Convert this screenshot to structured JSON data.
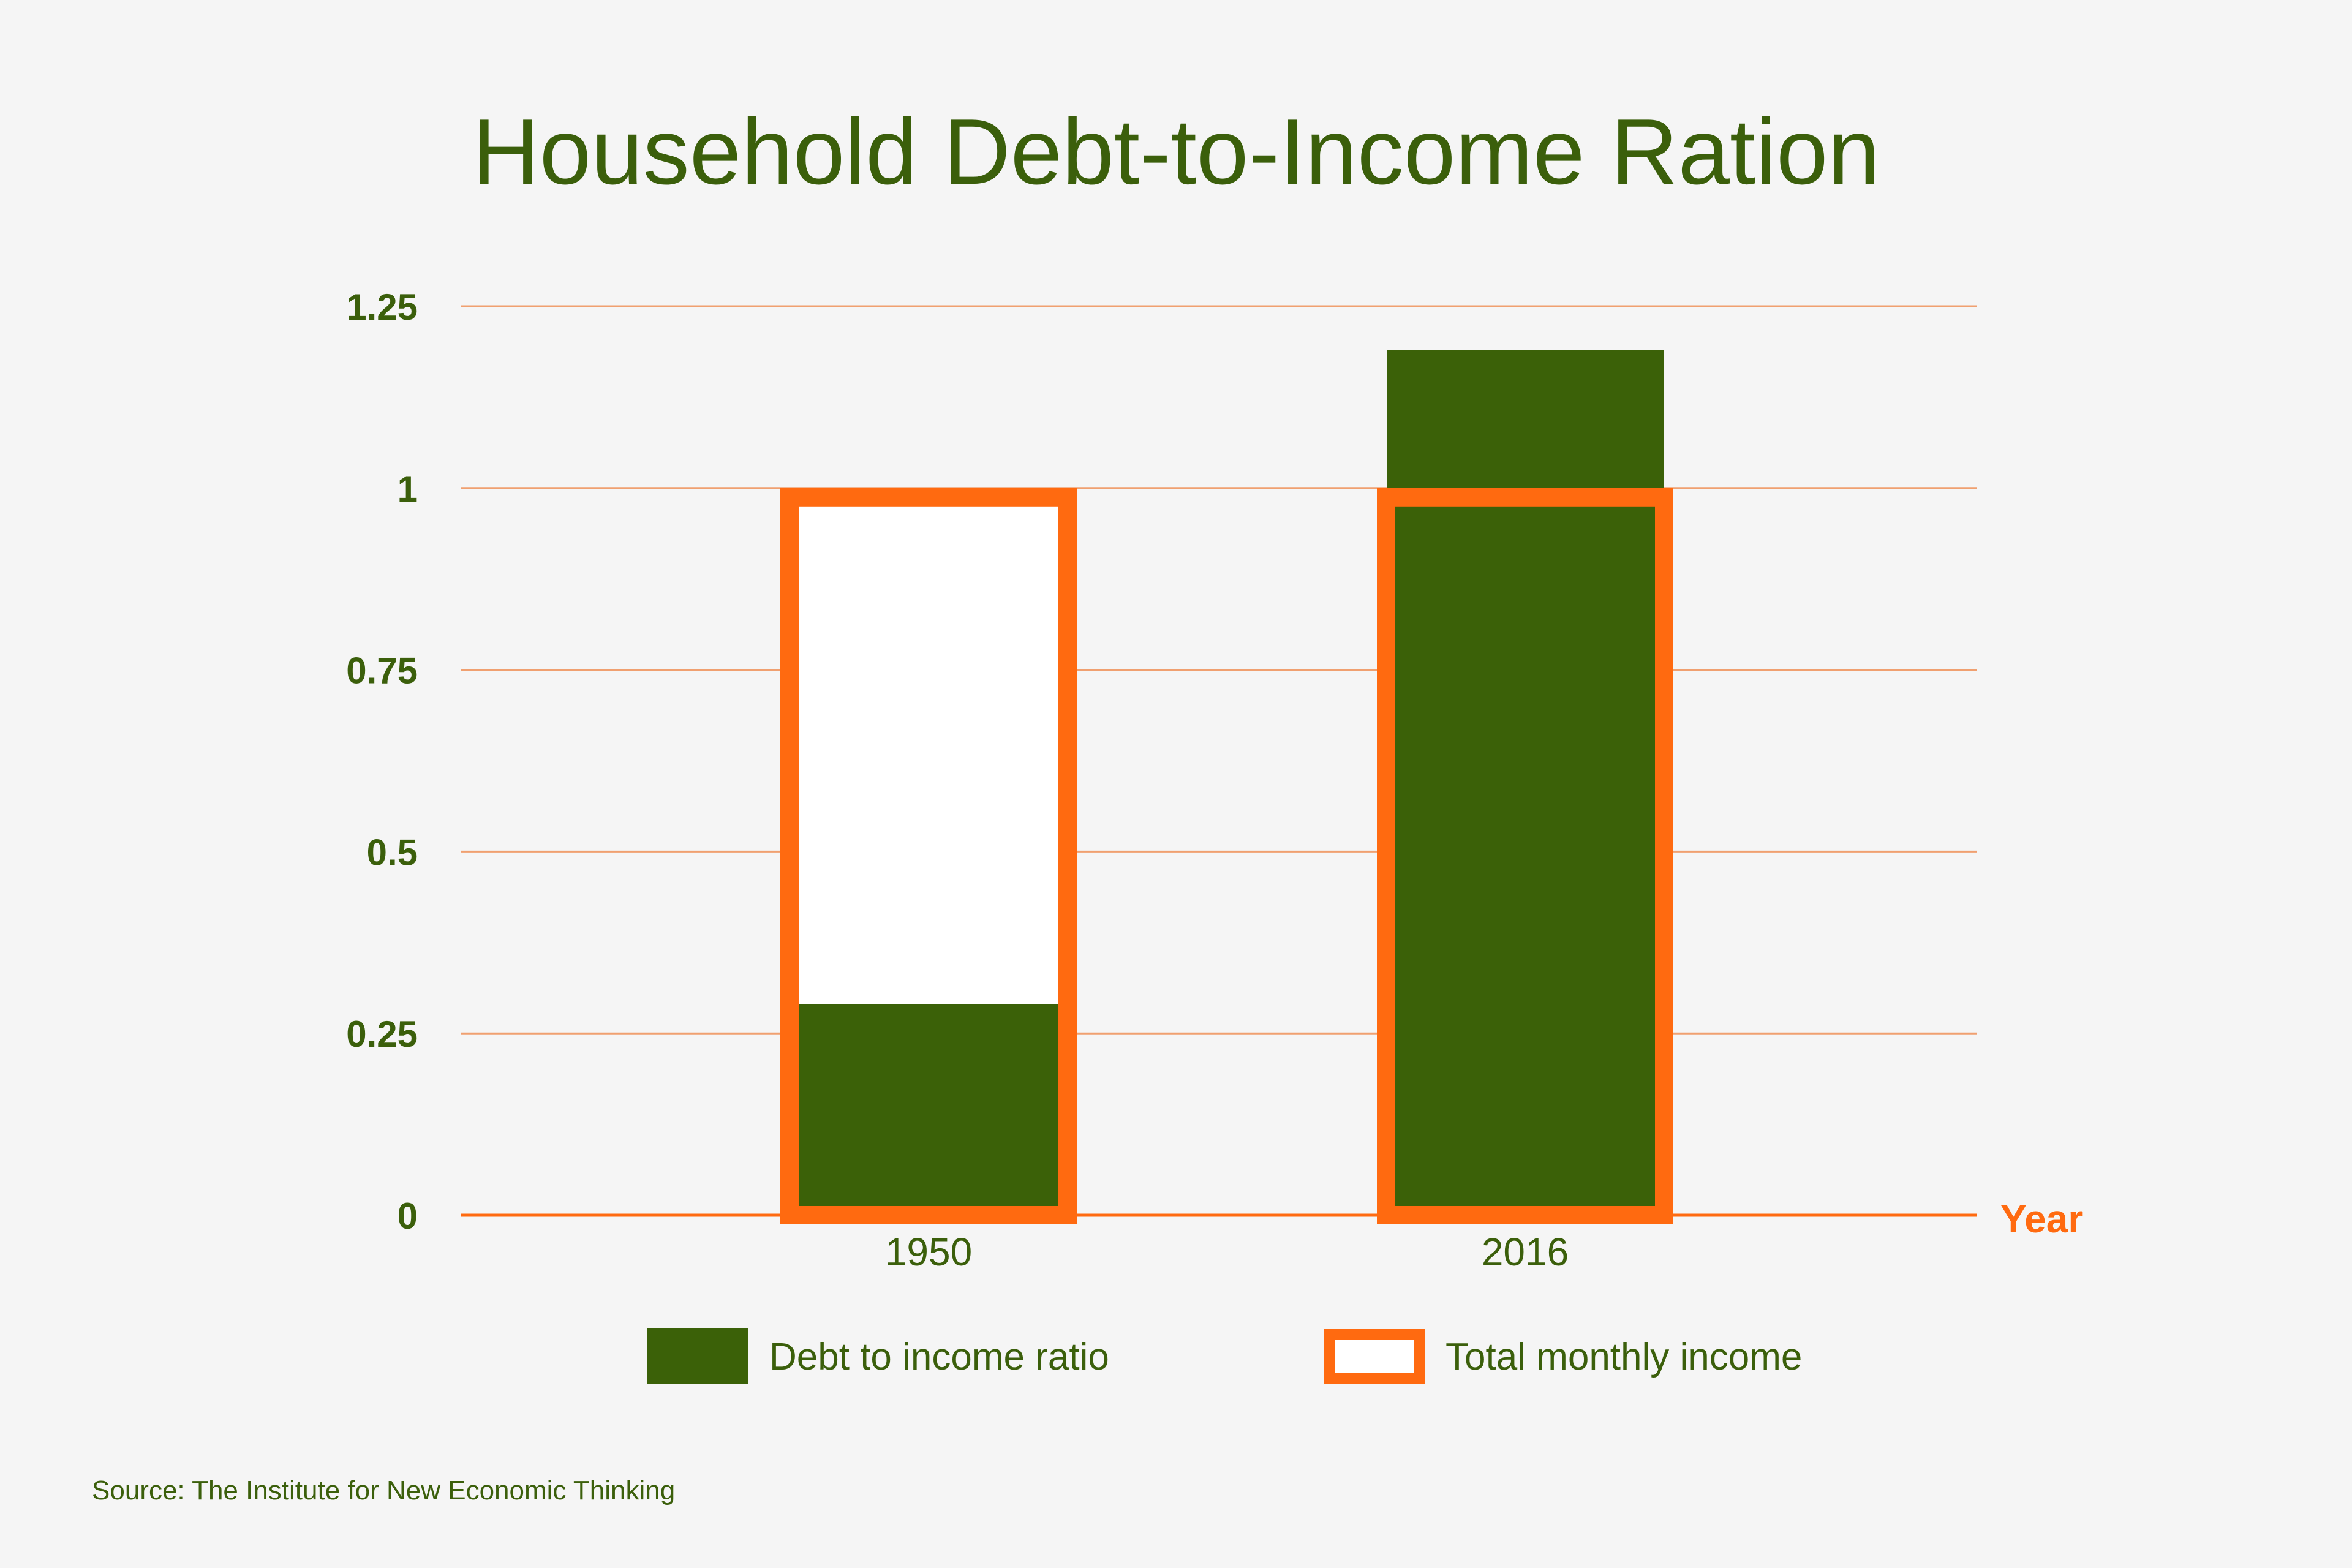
{
  "colors": {
    "background": "#f5f5f5",
    "debt": "#3b6108",
    "income_outline": "#ff6a10",
    "income_fill": "#ffffff",
    "text": "#3b5f0b",
    "grid": "#f0a070",
    "axis": "#ff6a10"
  },
  "chart_data": {
    "type": "bar",
    "title": "Household Debt-to-Income Ration",
    "xlabel": "Year",
    "ylabel": "",
    "categories": [
      "1950",
      "2016"
    ],
    "series": [
      {
        "name": "Debt to income ratio",
        "values": [
          0.29,
          1.19
        ],
        "style": "filled"
      },
      {
        "name": "Total monthly income",
        "values": [
          1.0,
          1.0
        ],
        "style": "outline"
      }
    ],
    "ylim": [
      0,
      1.25
    ],
    "yticks": [
      0,
      0.25,
      0.5,
      0.75,
      1,
      1.25
    ],
    "ytick_labels": [
      "0",
      "0.25",
      "0.5",
      "0.75",
      "1",
      "1.25"
    ],
    "grid": true,
    "legend": "bottom",
    "source": "Source: The Institute for New Economic Thinking"
  }
}
